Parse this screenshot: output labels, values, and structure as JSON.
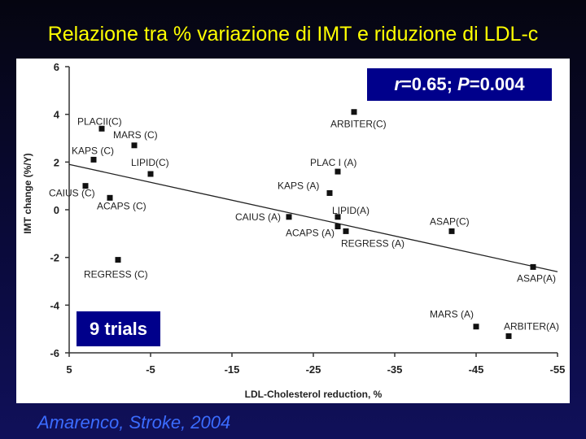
{
  "title": "Relazione tra % variazione di IMT e riduzione di LDL-c",
  "stat": {
    "r_sym": "r",
    "r_val": "=0.65; ",
    "p_sym": "P",
    "p_val": "=0.004"
  },
  "trials_label": "9 trials",
  "citation": "Amarenco, Stroke, 2004",
  "colors": {
    "title": "#ffff00",
    "box": "#00008b",
    "citation": "#3b6cff",
    "marker": "#111111"
  },
  "chart_data": {
    "type": "scatter",
    "xlabel": "LDL-Cholesterol reduction, %",
    "ylabel": "IMT change (%/Y)",
    "xlim": [
      5,
      -55
    ],
    "ylim": [
      -6,
      6
    ],
    "xticks": [
      5,
      -5,
      -15,
      -25,
      -35,
      -45,
      -55
    ],
    "yticks": [
      6,
      4,
      2,
      0,
      -2,
      -4,
      -6
    ],
    "points": [
      {
        "label": "PLACII(C)",
        "x": 1.0,
        "y": 3.4
      },
      {
        "label": "MARS (C)",
        "x": -3.0,
        "y": 2.7
      },
      {
        "label": "KAPS (C)",
        "x": 2.0,
        "y": 2.1
      },
      {
        "label": "LIPID(C)",
        "x": -5.0,
        "y": 1.5
      },
      {
        "label": "CAIUS (C)",
        "x": 3.0,
        "y": 1.0
      },
      {
        "label": "ACAPS (C)",
        "x": 0.0,
        "y": 0.5
      },
      {
        "label": "REGRESS (C)",
        "x": -1.0,
        "y": -2.1
      },
      {
        "label": "ARBITER(C)",
        "x": -30.0,
        "y": 4.1
      },
      {
        "label": "PLAC I (A)",
        "x": -28.0,
        "y": 1.6
      },
      {
        "label": "KAPS (A)",
        "x": -27.0,
        "y": 0.7
      },
      {
        "label": "CAIUS (A)",
        "x": -22.0,
        "y": -0.3
      },
      {
        "label": "LIPID(A)",
        "x": -28.0,
        "y": -0.3
      },
      {
        "label": "ACAPS (A)",
        "x": -28.0,
        "y": -0.7
      },
      {
        "label": "REGRESS (A)",
        "x": -29.0,
        "y": -0.9
      },
      {
        "label": "ASAP(C)",
        "x": -42.0,
        "y": -0.9
      },
      {
        "label": "ASAP(A)",
        "x": -52.0,
        "y": -2.4
      },
      {
        "label": "MARS (A)",
        "x": -45.0,
        "y": -4.9
      },
      {
        "label": "ARBITER(A)",
        "x": -49.0,
        "y": -5.3
      }
    ],
    "trendline": {
      "x": [
        5,
        -55
      ],
      "y": [
        1.9,
        -2.6
      ]
    },
    "legend": "none",
    "grid": false
  }
}
